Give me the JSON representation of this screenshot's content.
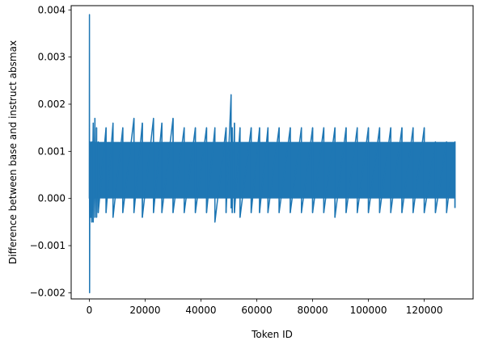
{
  "chart_data": {
    "type": "line",
    "title": "",
    "xlabel": "Token ID",
    "ylabel": "Difference between base and instruct absmax",
    "xlim": [
      -6500,
      137500
    ],
    "ylim": [
      -0.00213,
      0.00409
    ],
    "xticks": [
      0,
      20000,
      40000,
      60000,
      80000,
      100000,
      120000
    ],
    "xtick_labels": [
      "0",
      "20000",
      "40000",
      "60000",
      "80000",
      "100000",
      "120000"
    ],
    "yticks": [
      -0.002,
      -0.001,
      0.0,
      0.001,
      0.002,
      0.003,
      0.004
    ],
    "ytick_labels": [
      "−0.002",
      "−0.001",
      "0.000",
      "0.001",
      "0.002",
      "0.003",
      "0.004"
    ],
    "grid": false,
    "series": [
      {
        "color": "#1f77b4",
        "x": [
          0,
          50,
          100,
          200,
          300,
          500,
          900,
          1400,
          2000,
          2600,
          3200,
          6000,
          8500,
          12000,
          16000,
          19000,
          23000,
          26000,
          30000,
          34000,
          38000,
          42000,
          45000,
          49000,
          50800,
          51200,
          52000,
          54000,
          58000,
          61000,
          64000,
          68000,
          72000,
          76000,
          80000,
          84000,
          88000,
          92000,
          96000,
          100000,
          104000,
          108000,
          112000,
          116000,
          120000,
          124000,
          128000,
          131000
        ],
        "y": [
          0.0,
          0.0039,
          -0.002,
          0.0006,
          0.0012,
          0.0008,
          0.0012,
          0.0016,
          0.0017,
          0.0015,
          0.0012,
          0.0015,
          0.0016,
          0.0015,
          0.0017,
          0.0016,
          0.0017,
          0.0016,
          0.0017,
          0.0015,
          0.0015,
          0.0015,
          0.0015,
          0.0015,
          0.0022,
          0.0015,
          0.0016,
          0.0015,
          0.0015,
          0.0015,
          0.0015,
          0.0015,
          0.0015,
          0.0015,
          0.0015,
          0.0015,
          0.0015,
          0.0015,
          0.0015,
          0.0015,
          0.0015,
          0.0015,
          0.0015,
          0.0015,
          0.0015,
          0.0012,
          0.0012,
          0.0012
        ],
        "y_low": [
          0.0,
          0.0039,
          -0.002,
          -0.0001,
          -0.0002,
          -0.0004,
          -0.0005,
          -0.0005,
          -0.0004,
          -0.0004,
          -0.0003,
          -0.0003,
          -0.0004,
          -0.0003,
          -0.0003,
          -0.0004,
          -0.0003,
          -0.0003,
          -0.0003,
          -0.0003,
          -0.0003,
          -0.0003,
          -0.0005,
          -0.0003,
          -0.0002,
          -0.0003,
          -0.0003,
          -0.0004,
          -0.0003,
          -0.0003,
          -0.0003,
          -0.0003,
          -0.0003,
          -0.0003,
          -0.0003,
          -0.0003,
          -0.0004,
          -0.0003,
          -0.0003,
          -0.0003,
          -0.0003,
          -0.0003,
          -0.0003,
          -0.0003,
          -0.0003,
          -0.0003,
          -0.0003,
          -0.0002
        ],
        "band_low": 0.0,
        "band_high": 0.0012
      }
    ]
  }
}
